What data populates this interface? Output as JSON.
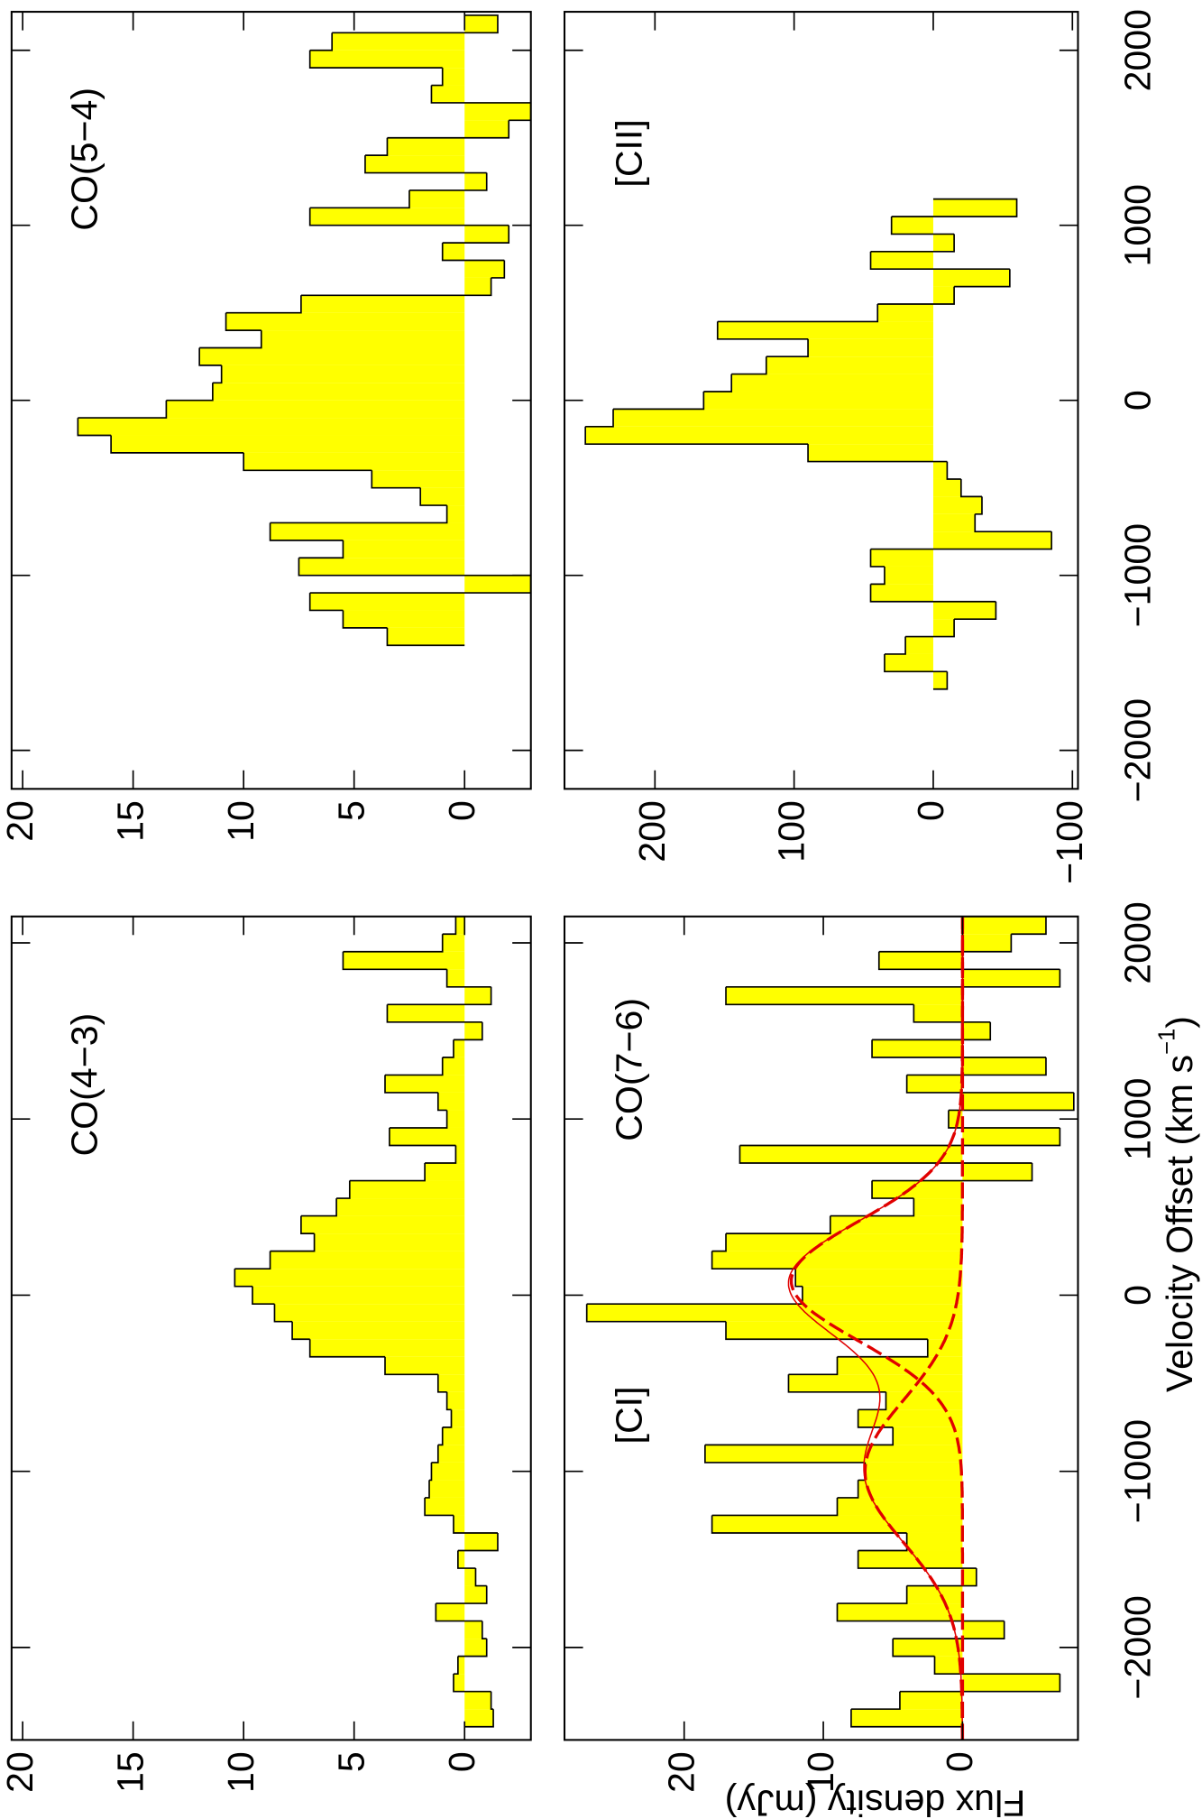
{
  "figure": {
    "xlabel": [
      "Velocity Offset (km s",
      "−1",
      ")"
    ],
    "ylabel": "Flux density (mJy)"
  },
  "chart_data": [
    {
      "type": "histogram",
      "labels": [
        "CO(4−3)"
      ],
      "color": "#ffff00",
      "edgecolor": "#000000",
      "bins": [
        -2450,
        -2350,
        -2250,
        -2150,
        -2050,
        -1950,
        -1850,
        -1750,
        -1650,
        -1550,
        -1450,
        -1350,
        -1250,
        -1150,
        -1050,
        -950,
        -850,
        -750,
        -650,
        -550,
        -450,
        -350,
        -250,
        -150,
        -50,
        50,
        150,
        250,
        350,
        450,
        550,
        650,
        750,
        850,
        950,
        1050,
        1150,
        1250,
        1350,
        1450,
        1550,
        1650,
        1750,
        1850,
        1950,
        2050,
        2150
      ],
      "values": [
        -1.3,
        -1.2,
        0.5,
        0.3,
        -1.0,
        -0.8,
        1.3,
        -1.0,
        -0.5,
        0.3,
        -1.5,
        0.5,
        1.8,
        1.6,
        1.5,
        1.2,
        1.0,
        0.6,
        0.8,
        1.2,
        3.6,
        7.0,
        7.8,
        8.6,
        9.6,
        10.4,
        8.8,
        6.8,
        7.4,
        5.8,
        5.2,
        1.8,
        0.4,
        3.4,
        0.8,
        1.2,
        3.6,
        1.0,
        0.5,
        -0.8,
        3.5,
        -1.2,
        0.8,
        5.5,
        1.0,
        0.4
      ],
      "xlim": [
        -2525,
        2150
      ],
      "ylim": [
        -3,
        20.5
      ],
      "xticks": [
        {
          "value": -2000,
          "label": "−2000"
        },
        {
          "value": -1000,
          "label": "−1000"
        },
        0,
        1000,
        2000
      ],
      "xticklabels": false,
      "yticks": [
        0,
        5,
        10,
        15,
        20
      ]
    },
    {
      "type": "histogram",
      "labels": [
        "CO(5−4)"
      ],
      "color": "#ffff00",
      "edgecolor": "#000000",
      "bins": [
        -1400,
        -1300,
        -1200,
        -1100,
        -1000,
        -900,
        -800,
        -700,
        -600,
        -500,
        -400,
        -300,
        -200,
        -100,
        0,
        100,
        200,
        300,
        400,
        500,
        600,
        700,
        800,
        900,
        1000,
        1100,
        1200,
        1300,
        1400,
        1500,
        1600,
        1700,
        1800,
        1900,
        2000,
        2100,
        2200
      ],
      "values": [
        3.5,
        5.5,
        7.0,
        -3.0,
        7.5,
        5.5,
        8.8,
        0.8,
        2.0,
        4.2,
        10.0,
        16.0,
        17.5,
        13.5,
        11.4,
        11.0,
        12.0,
        9.2,
        10.8,
        7.4,
        -1.2,
        -1.8,
        1.0,
        -2.0,
        7.0,
        2.5,
        -1.0,
        4.5,
        3.5,
        -2.0,
        -3.0,
        1.5,
        1.0,
        7.0,
        6.0,
        -1.5
      ],
      "xlim": [
        -2220,
        2220
      ],
      "ylim": [
        -3,
        20.5
      ],
      "xticks": [
        {
          "value": -2000,
          "label": "−2000"
        },
        {
          "value": -1000,
          "label": "−1000"
        },
        0,
        1000,
        2000
      ],
      "xticklabels": false,
      "yticks": [
        0,
        5,
        10,
        15,
        20
      ]
    },
    {
      "type": "histogram",
      "labels": [
        "[CI]",
        "CO(7−6)"
      ],
      "color": "#ffff00",
      "edgecolor": "#000000",
      "bins": [
        -2450,
        -2350,
        -2250,
        -2150,
        -2050,
        -1950,
        -1850,
        -1750,
        -1650,
        -1550,
        -1450,
        -1350,
        -1250,
        -1150,
        -1050,
        -950,
        -850,
        -750,
        -650,
        -550,
        -450,
        -350,
        -250,
        -150,
        -50,
        50,
        150,
        250,
        350,
        450,
        550,
        650,
        750,
        850,
        950,
        1050,
        1150,
        1250,
        1350,
        1450,
        1550,
        1650,
        1750,
        1850,
        1950,
        2050,
        2150
      ],
      "values": [
        8.0,
        4.5,
        -7.0,
        2.0,
        5.0,
        -3.0,
        9.0,
        4.0,
        -1.0,
        7.5,
        4.0,
        18.0,
        9.0,
        7.5,
        7.0,
        18.5,
        5.0,
        7.5,
        5.5,
        12.5,
        9.0,
        2.5,
        17.0,
        27.0,
        11.5,
        12.0,
        18.0,
        17.0,
        9.5,
        3.5,
        6.5,
        -5.0,
        16.0,
        -7.0,
        1.0,
        -8.0,
        4.0,
        -6.0,
        6.5,
        -2.0,
        3.5,
        17.0,
        -7.0,
        6.0,
        -3.5,
        -6.0
      ],
      "xlim": [
        -2525,
        2150
      ],
      "ylim": [
        -8.3,
        28.6
      ],
      "xticks": [
        {
          "value": -2000,
          "label": "−2000"
        },
        {
          "value": -1000,
          "label": "−1000"
        },
        0,
        1000,
        2000
      ],
      "xticklabels": true,
      "yticks": [
        0,
        10,
        20
      ],
      "fits": {
        "color": "#e00000",
        "components": [
          {
            "center": -1000,
            "amplitude": 7.0,
            "fwhm": 950
          },
          {
            "center": 80,
            "amplitude": 12.3,
            "fwhm": 800
          }
        ]
      }
    },
    {
      "type": "histogram",
      "labels": [
        "[CII]"
      ],
      "color": "#ffff00",
      "edgecolor": "#000000",
      "bins": [
        -1650,
        -1550,
        -1450,
        -1350,
        -1250,
        -1150,
        -1050,
        -950,
        -850,
        -750,
        -650,
        -550,
        -450,
        -350,
        -250,
        -150,
        -50,
        50,
        150,
        250,
        350,
        450,
        550,
        650,
        750,
        850,
        950,
        1050,
        1150
      ],
      "values": [
        -10,
        35,
        20,
        -15,
        -45,
        45,
        35,
        45,
        -85,
        -30,
        -35,
        -20,
        -10,
        90,
        250,
        230,
        165,
        145,
        120,
        90,
        155,
        40,
        -15,
        -55,
        45,
        -15,
        30,
        -60
      ],
      "xlim": [
        -2220,
        2220
      ],
      "ylim": [
        -104,
        265
      ],
      "xticks": [
        {
          "value": -2000,
          "label": "−2000"
        },
        {
          "value": -1000,
          "label": "−1000"
        },
        0,
        1000,
        2000
      ],
      "xticklabels": true,
      "yticks": [
        {
          "value": -100,
          "label": "−100"
        },
        0,
        100,
        200
      ]
    }
  ]
}
